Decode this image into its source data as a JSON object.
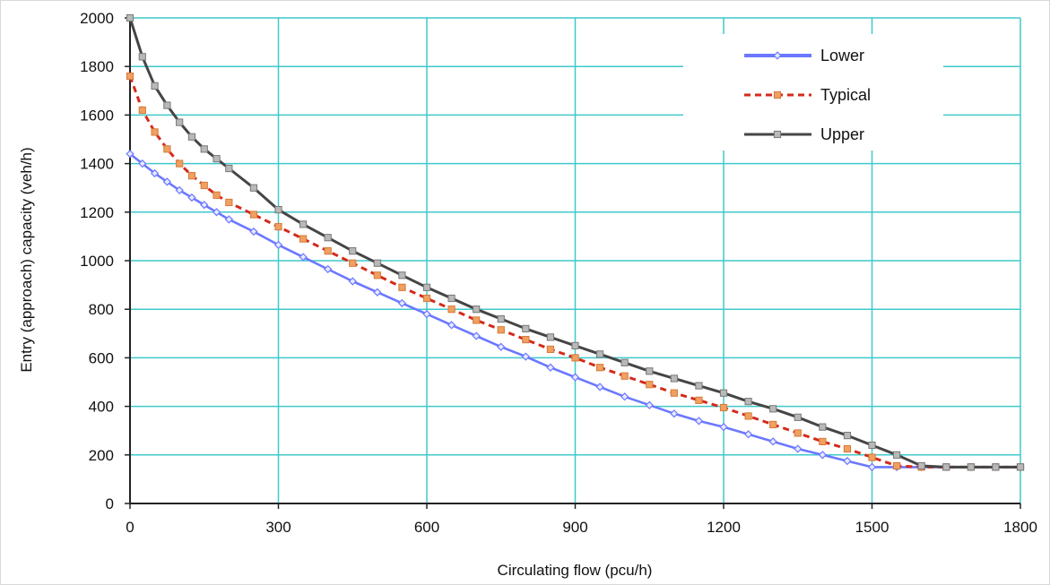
{
  "chart_data": {
    "type": "line",
    "title": "",
    "xlabel": "Circulating flow (pcu/h)",
    "ylabel": "Entry (approach) capacity (veh/h)",
    "xlim": [
      0,
      1800
    ],
    "ylim": [
      0,
      2000
    ],
    "xticks": [
      0,
      300,
      600,
      900,
      1200,
      1500,
      1800
    ],
    "yticks": [
      0,
      200,
      400,
      600,
      800,
      1000,
      1200,
      1400,
      1600,
      1800,
      2000
    ],
    "grid": true,
    "legend_position": "top-right",
    "series": [
      {
        "name": "Lower",
        "color": "#6b78ff",
        "marker": "diamond",
        "x": [
          0,
          25,
          50,
          75,
          100,
          125,
          150,
          175,
          200,
          250,
          300,
          350,
          400,
          450,
          500,
          550,
          600,
          650,
          700,
          750,
          800,
          850,
          900,
          950,
          1000,
          1050,
          1100,
          1150,
          1200,
          1250,
          1300,
          1350,
          1400,
          1450,
          1500,
          1550,
          1600,
          1650,
          1700,
          1750,
          1800
        ],
        "y": [
          1440,
          1400,
          1360,
          1325,
          1290,
          1260,
          1230,
          1200,
          1170,
          1120,
          1065,
          1015,
          965,
          915,
          870,
          825,
          780,
          735,
          690,
          645,
          605,
          560,
          520,
          480,
          440,
          405,
          370,
          340,
          315,
          285,
          255,
          225,
          200,
          175,
          150,
          150,
          150,
          150,
          150,
          150,
          150
        ]
      },
      {
        "name": "Typical",
        "color": "#d42a1a",
        "marker": "square",
        "x": [
          0,
          25,
          50,
          75,
          100,
          125,
          150,
          175,
          200,
          250,
          300,
          350,
          400,
          450,
          500,
          550,
          600,
          650,
          700,
          750,
          800,
          850,
          900,
          950,
          1000,
          1050,
          1100,
          1150,
          1200,
          1250,
          1300,
          1350,
          1400,
          1450,
          1500,
          1550,
          1600,
          1650,
          1700,
          1750,
          1800
        ],
        "y": [
          1760,
          1620,
          1530,
          1460,
          1400,
          1350,
          1310,
          1270,
          1240,
          1190,
          1140,
          1090,
          1040,
          990,
          940,
          890,
          845,
          800,
          755,
          715,
          675,
          635,
          600,
          560,
          525,
          490,
          455,
          425,
          395,
          360,
          325,
          290,
          255,
          225,
          190,
          155,
          150,
          150,
          150,
          150,
          150
        ]
      },
      {
        "name": "Upper",
        "color": "#454545",
        "marker": "square",
        "x": [
          0,
          25,
          50,
          75,
          100,
          125,
          150,
          175,
          200,
          250,
          300,
          350,
          400,
          450,
          500,
          550,
          600,
          650,
          700,
          750,
          800,
          850,
          900,
          950,
          1000,
          1050,
          1100,
          1150,
          1200,
          1250,
          1300,
          1350,
          1400,
          1450,
          1500,
          1550,
          1600,
          1650,
          1700,
          1750,
          1800
        ],
        "y": [
          2000,
          1840,
          1720,
          1640,
          1570,
          1510,
          1460,
          1420,
          1380,
          1300,
          1210,
          1150,
          1095,
          1040,
          990,
          940,
          890,
          845,
          800,
          760,
          720,
          685,
          650,
          615,
          580,
          545,
          515,
          485,
          455,
          420,
          390,
          355,
          315,
          280,
          240,
          200,
          155,
          150,
          150,
          150,
          150
        ]
      }
    ]
  }
}
